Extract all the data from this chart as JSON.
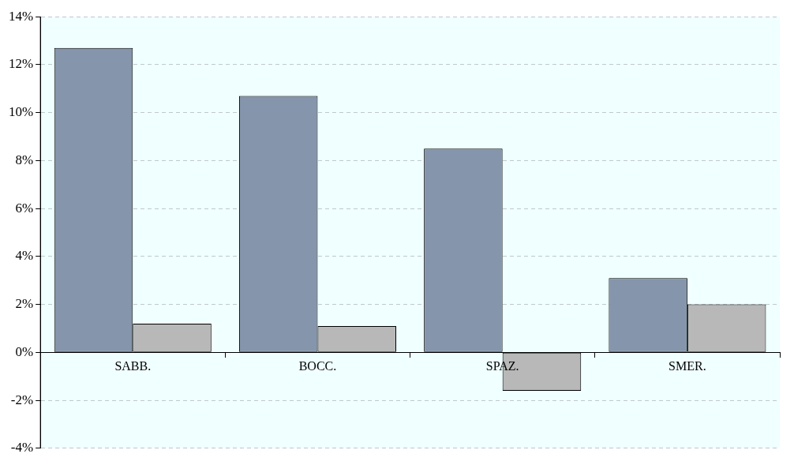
{
  "chart_data": {
    "type": "bar",
    "categories": [
      "SABB.",
      "BOCC.",
      "SPAZ.",
      "SMER."
    ],
    "series": [
      {
        "color": "#8595ab",
        "values": [
          12.7,
          10.7,
          8.5,
          3.1
        ]
      },
      {
        "color": "#b8b8b8",
        "values": [
          1.2,
          1.1,
          -1.6,
          2.0
        ]
      }
    ],
    "ylim": [
      -4,
      14
    ],
    "yticks": [
      {
        "value": -4,
        "label": "-4%"
      },
      {
        "value": -2,
        "label": "-2%"
      },
      {
        "value": 0,
        "label": "0%"
      },
      {
        "value": 2,
        "label": "2%"
      },
      {
        "value": 4,
        "label": "4%"
      },
      {
        "value": 6,
        "label": "6%"
      },
      {
        "value": 8,
        "label": "8%"
      },
      {
        "value": 10,
        "label": "10%"
      },
      {
        "value": 12,
        "label": "12%"
      },
      {
        "value": 14,
        "label": "14%"
      }
    ],
    "grid": "y",
    "legend": false
  }
}
